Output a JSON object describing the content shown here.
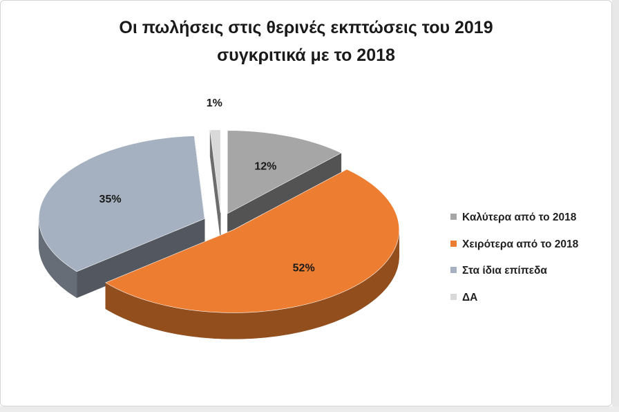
{
  "chart_data": {
    "type": "pie",
    "title_line1": "Οι πωλήσεις στις θερινές εκπτώσεις του 2019",
    "title_line2": "συγκριτικά με το 2018",
    "slices": [
      {
        "label": "Καλύτερα από το 2018",
        "value": 12,
        "value_label": "12%",
        "color": "#a6a6a6"
      },
      {
        "label": "Χειρότερα από το 2018",
        "value": 52,
        "value_label": "52%",
        "color": "#ed7d31"
      },
      {
        "label": "Στα ίδια επίπεδα",
        "value": 35,
        "value_label": "35%",
        "color": "#a5b0c0"
      },
      {
        "label": "ΔΑ",
        "value": 1,
        "value_label": "1%",
        "color": "#d9d9d9"
      }
    ],
    "legend_position": "right",
    "style": "exploded 3D pie"
  }
}
